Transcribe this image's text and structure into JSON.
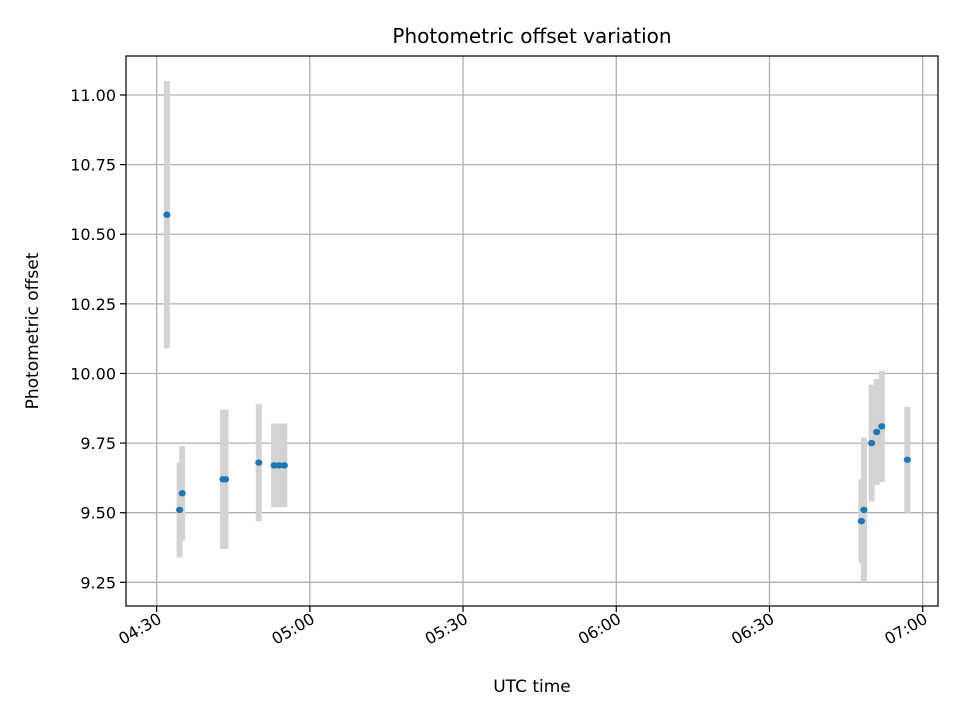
{
  "chart_data": {
    "type": "scatter",
    "title": "Photometric offset variation",
    "xlabel": "UTC time",
    "ylabel": "Photometric offset",
    "x_unit": "time (HH:MM, UTC)",
    "xlim": [
      "04:24",
      "07:03"
    ],
    "ylim": [
      9.165,
      11.14
    ],
    "x_ticks": [
      "04:30",
      "05:00",
      "05:30",
      "06:00",
      "06:30",
      "07:00"
    ],
    "y_ticks": [
      "9.25",
      "9.50",
      "9.75",
      "10.00",
      "10.25",
      "10.50",
      "10.75",
      "11.00"
    ],
    "grid": true,
    "series": [
      {
        "marker_color": "#1f77b4",
        "errorbar_color": "#d3d3d3",
        "points": [
          {
            "x": "04:32",
            "y": 10.57,
            "err": 0.48
          },
          {
            "x": "04:34:30",
            "y": 9.51,
            "err": 0.17
          },
          {
            "x": "04:35",
            "y": 9.57,
            "err": 0.17
          },
          {
            "x": "04:43",
            "y": 9.62,
            "err": 0.25
          },
          {
            "x": "04:43:30",
            "y": 9.62,
            "err": 0.25
          },
          {
            "x": "04:50",
            "y": 9.68,
            "err": 0.21
          },
          {
            "x": "04:53",
            "y": 9.67,
            "err": 0.15
          },
          {
            "x": "04:54",
            "y": 9.67,
            "err": 0.15
          },
          {
            "x": "04:55",
            "y": 9.67,
            "err": 0.15
          },
          {
            "x": "06:48",
            "y": 9.47,
            "err": 0.15
          },
          {
            "x": "06:48:30",
            "y": 9.51,
            "err": 0.26
          },
          {
            "x": "06:50",
            "y": 9.75,
            "err": 0.21
          },
          {
            "x": "06:51",
            "y": 9.79,
            "err": 0.19
          },
          {
            "x": "06:52",
            "y": 9.81,
            "err": 0.2
          },
          {
            "x": "06:57",
            "y": 9.69,
            "err": 0.19
          }
        ]
      }
    ]
  }
}
